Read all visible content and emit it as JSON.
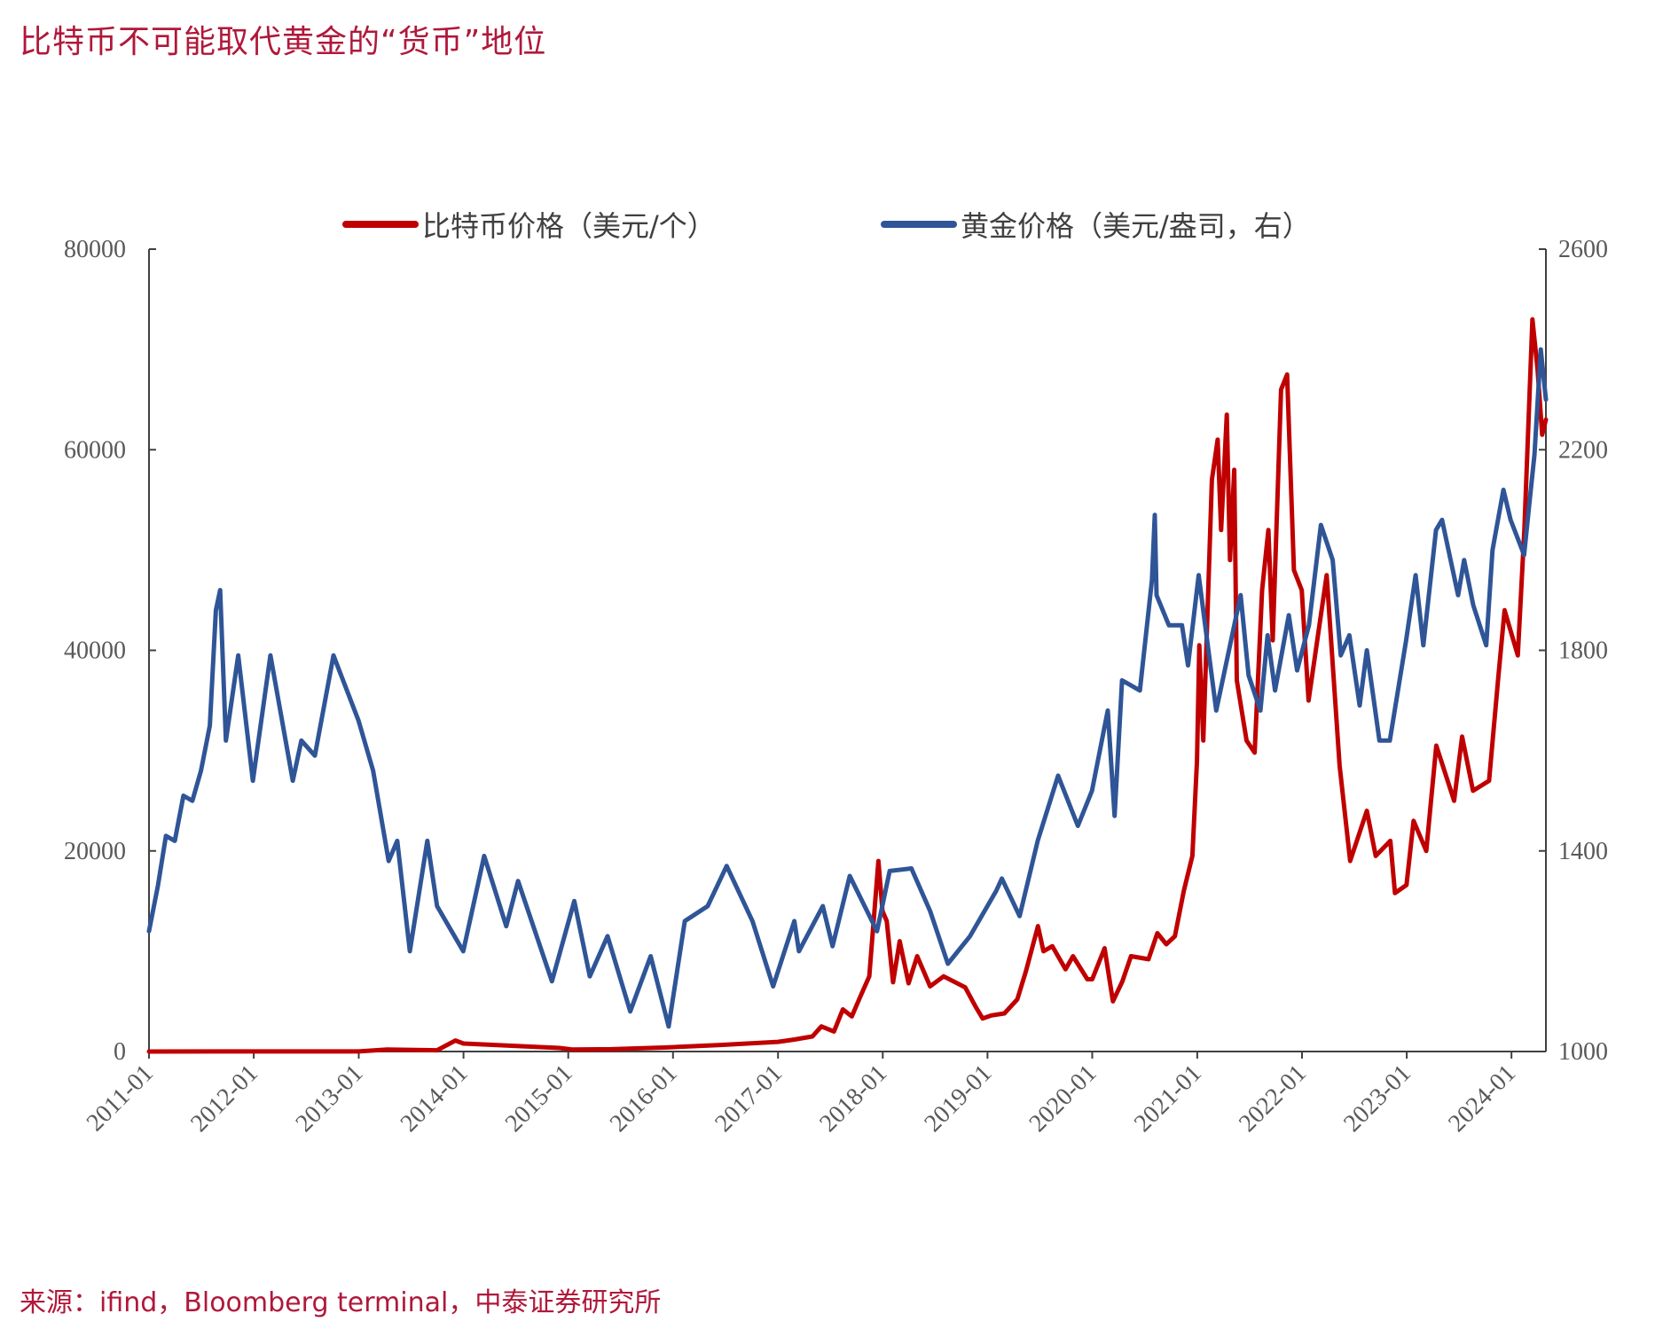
{
  "title": "比特币不可能取代黄金的“货币”地位",
  "source": "来源：ifind，Bloomberg terminal，中泰证券研究所",
  "colors": {
    "btc": "#c00000",
    "gold": "#2f5597",
    "axis": "#404040",
    "title": "#b0183a"
  },
  "chart_data": {
    "type": "line",
    "legend_position": "top",
    "grid": false,
    "x_axis": {
      "ticks": [
        "2011-01",
        "2012-01",
        "2013-01",
        "2014-01",
        "2015-01",
        "2016-01",
        "2017-01",
        "2018-01",
        "2019-01",
        "2020-01",
        "2021-01",
        "2022-01",
        "2023-01",
        "2024-01"
      ],
      "range": [
        "2011-01-01",
        "2024-04-30"
      ]
    },
    "y_left": {
      "min": 0,
      "max": 80000,
      "ticks": [
        0,
        20000,
        40000,
        60000,
        80000
      ]
    },
    "y_right": {
      "min": 1000,
      "max": 2600,
      "ticks": [
        1000,
        1400,
        1800,
        2200,
        2600
      ]
    },
    "series": [
      {
        "name": "比特币价格（美元/个）",
        "axis": "left",
        "color": "#c00000",
        "points": [
          [
            "2011-01-01",
            0
          ],
          [
            "2012-01-01",
            5
          ],
          [
            "2013-01-01",
            13
          ],
          [
            "2013-04-10",
            200
          ],
          [
            "2013-10-01",
            120
          ],
          [
            "2013-12-04",
            1100
          ],
          [
            "2014-01-01",
            800
          ],
          [
            "2014-06-01",
            600
          ],
          [
            "2014-12-01",
            350
          ],
          [
            "2015-01-14",
            200
          ],
          [
            "2015-06-01",
            230
          ],
          [
            "2015-12-01",
            400
          ],
          [
            "2016-06-15",
            650
          ],
          [
            "2017-01-01",
            960
          ],
          [
            "2017-03-01",
            1200
          ],
          [
            "2017-05-01",
            1500
          ],
          [
            "2017-06-01",
            2500
          ],
          [
            "2017-07-15",
            2000
          ],
          [
            "2017-08-15",
            4200
          ],
          [
            "2017-09-15",
            3500
          ],
          [
            "2017-10-15",
            5500
          ],
          [
            "2017-11-15",
            7500
          ],
          [
            "2017-12-17",
            19000
          ],
          [
            "2017-12-31",
            14000
          ],
          [
            "2018-01-15",
            13000
          ],
          [
            "2018-02-06",
            6900
          ],
          [
            "2018-03-01",
            11000
          ],
          [
            "2018-04-01",
            6800
          ],
          [
            "2018-05-01",
            9500
          ],
          [
            "2018-06-15",
            6500
          ],
          [
            "2018-08-01",
            7500
          ],
          [
            "2018-10-15",
            6400
          ],
          [
            "2018-11-20",
            4500
          ],
          [
            "2018-12-15",
            3300
          ],
          [
            "2019-01-15",
            3600
          ],
          [
            "2019-03-01",
            3800
          ],
          [
            "2019-04-15",
            5200
          ],
          [
            "2019-05-15",
            8000
          ],
          [
            "2019-06-26",
            12500
          ],
          [
            "2019-07-15",
            10000
          ],
          [
            "2019-08-15",
            10500
          ],
          [
            "2019-09-30",
            8200
          ],
          [
            "2019-10-26",
            9500
          ],
          [
            "2019-12-15",
            7200
          ],
          [
            "2020-01-01",
            7200
          ],
          [
            "2020-02-13",
            10300
          ],
          [
            "2020-03-13",
            5000
          ],
          [
            "2020-04-15",
            7000
          ],
          [
            "2020-05-15",
            9500
          ],
          [
            "2020-07-15",
            9200
          ],
          [
            "2020-08-15",
            11800
          ],
          [
            "2020-09-15",
            10700
          ],
          [
            "2020-10-15",
            11500
          ],
          [
            "2020-11-15",
            16000
          ],
          [
            "2020-12-15",
            19500
          ],
          [
            "2020-12-31",
            29000
          ],
          [
            "2021-01-08",
            40500
          ],
          [
            "2021-01-22",
            31000
          ],
          [
            "2021-02-21",
            57000
          ],
          [
            "2021-03-13",
            61000
          ],
          [
            "2021-03-25",
            52000
          ],
          [
            "2021-04-14",
            63500
          ],
          [
            "2021-04-25",
            49000
          ],
          [
            "2021-05-10",
            58000
          ],
          [
            "2021-05-19",
            37000
          ],
          [
            "2021-06-22",
            31000
          ],
          [
            "2021-07-20",
            29800
          ],
          [
            "2021-08-15",
            46000
          ],
          [
            "2021-09-06",
            52000
          ],
          [
            "2021-09-21",
            41000
          ],
          [
            "2021-10-20",
            66000
          ],
          [
            "2021-11-10",
            67500
          ],
          [
            "2021-12-04",
            48000
          ],
          [
            "2021-12-31",
            46000
          ],
          [
            "2022-01-24",
            35000
          ],
          [
            "2022-03-28",
            47500
          ],
          [
            "2022-05-12",
            28500
          ],
          [
            "2022-06-18",
            19000
          ],
          [
            "2022-08-15",
            24000
          ],
          [
            "2022-09-15",
            19500
          ],
          [
            "2022-11-05",
            21000
          ],
          [
            "2022-11-21",
            15800
          ],
          [
            "2022-12-31",
            16600
          ],
          [
            "2023-01-25",
            23000
          ],
          [
            "2023-03-10",
            20000
          ],
          [
            "2023-04-14",
            30500
          ],
          [
            "2023-06-15",
            25000
          ],
          [
            "2023-07-13",
            31400
          ],
          [
            "2023-08-20",
            26000
          ],
          [
            "2023-10-15",
            27000
          ],
          [
            "2023-11-15",
            37000
          ],
          [
            "2023-12-08",
            44000
          ],
          [
            "2024-01-23",
            39500
          ],
          [
            "2024-02-15",
            52000
          ],
          [
            "2024-03-14",
            73000
          ],
          [
            "2024-04-01",
            68000
          ],
          [
            "2024-04-17",
            61500
          ],
          [
            "2024-04-30",
            63000
          ]
        ]
      },
      {
        "name": "黄金价格（美元/盎司，右）",
        "axis": "right",
        "color": "#2f5597",
        "points": [
          [
            "2011-01-01",
            1240
          ],
          [
            "2011-02-01",
            1330
          ],
          [
            "2011-03-01",
            1430
          ],
          [
            "2011-04-01",
            1420
          ],
          [
            "2011-05-01",
            1510
          ],
          [
            "2011-06-01",
            1500
          ],
          [
            "2011-07-01",
            1560
          ],
          [
            "2011-08-01",
            1650
          ],
          [
            "2011-08-22",
            1880
          ],
          [
            "2011-09-06",
            1920
          ],
          [
            "2011-09-26",
            1620
          ],
          [
            "2011-11-08",
            1790
          ],
          [
            "2011-12-29",
            1540
          ],
          [
            "2012-02-28",
            1790
          ],
          [
            "2012-05-16",
            1540
          ],
          [
            "2012-06-15",
            1620
          ],
          [
            "2012-08-01",
            1590
          ],
          [
            "2012-10-05",
            1790
          ],
          [
            "2012-12-31",
            1660
          ],
          [
            "2013-02-20",
            1560
          ],
          [
            "2013-04-15",
            1380
          ],
          [
            "2013-05-15",
            1420
          ],
          [
            "2013-06-28",
            1200
          ],
          [
            "2013-08-28",
            1420
          ],
          [
            "2013-10-01",
            1290
          ],
          [
            "2013-12-31",
            1200
          ],
          [
            "2014-03-14",
            1390
          ],
          [
            "2014-05-30",
            1250
          ],
          [
            "2014-07-10",
            1340
          ],
          [
            "2014-11-05",
            1140
          ],
          [
            "2015-01-22",
            1300
          ],
          [
            "2015-03-17",
            1150
          ],
          [
            "2015-05-18",
            1230
          ],
          [
            "2015-08-05",
            1080
          ],
          [
            "2015-10-15",
            1190
          ],
          [
            "2015-12-17",
            1050
          ],
          [
            "2016-02-11",
            1260
          ],
          [
            "2016-05-01",
            1290
          ],
          [
            "2016-07-06",
            1370
          ],
          [
            "2016-10-04",
            1260
          ],
          [
            "2016-12-15",
            1130
          ],
          [
            "2017-02-27",
            1260
          ],
          [
            "2017-03-15",
            1200
          ],
          [
            "2017-06-06",
            1290
          ],
          [
            "2017-07-10",
            1210
          ],
          [
            "2017-09-08",
            1350
          ],
          [
            "2017-12-12",
            1240
          ],
          [
            "2018-01-25",
            1360
          ],
          [
            "2018-04-11",
            1365
          ],
          [
            "2018-06-15",
            1280
          ],
          [
            "2018-08-16",
            1175
          ],
          [
            "2018-11-01",
            1230
          ],
          [
            "2019-01-31",
            1320
          ],
          [
            "2019-02-20",
            1345
          ],
          [
            "2019-04-23",
            1270
          ],
          [
            "2019-06-25",
            1420
          ],
          [
            "2019-09-04",
            1550
          ],
          [
            "2019-11-12",
            1450
          ],
          [
            "2019-12-31",
            1520
          ],
          [
            "2020-02-24",
            1680
          ],
          [
            "2020-03-19",
            1470
          ],
          [
            "2020-04-14",
            1740
          ],
          [
            "2020-06-15",
            1720
          ],
          [
            "2020-07-27",
            1940
          ],
          [
            "2020-08-06",
            2070
          ],
          [
            "2020-08-12",
            1910
          ],
          [
            "2020-09-24",
            1850
          ],
          [
            "2020-11-09",
            1850
          ],
          [
            "2020-11-30",
            1770
          ],
          [
            "2021-01-06",
            1950
          ],
          [
            "2021-03-08",
            1680
          ],
          [
            "2021-06-01",
            1910
          ],
          [
            "2021-06-29",
            1750
          ],
          [
            "2021-08-09",
            1680
          ],
          [
            "2021-09-03",
            1830
          ],
          [
            "2021-09-29",
            1720
          ],
          [
            "2021-11-16",
            1870
          ],
          [
            "2021-12-15",
            1760
          ],
          [
            "2022-01-25",
            1850
          ],
          [
            "2022-03-08",
            2050
          ],
          [
            "2022-04-18",
            1980
          ],
          [
            "2022-05-16",
            1790
          ],
          [
            "2022-06-15",
            1830
          ],
          [
            "2022-07-21",
            1690
          ],
          [
            "2022-08-15",
            1800
          ],
          [
            "2022-09-28",
            1620
          ],
          [
            "2022-11-03",
            1620
          ],
          [
            "2022-12-30",
            1820
          ],
          [
            "2023-02-01",
            1950
          ],
          [
            "2023-02-28",
            1810
          ],
          [
            "2023-04-13",
            2040
          ],
          [
            "2023-05-04",
            2060
          ],
          [
            "2023-06-29",
            1910
          ],
          [
            "2023-07-20",
            1980
          ],
          [
            "2023-08-21",
            1890
          ],
          [
            "2023-10-05",
            1810
          ],
          [
            "2023-10-27",
            2000
          ],
          [
            "2023-12-04",
            2120
          ],
          [
            "2023-12-29",
            2060
          ],
          [
            "2024-02-14",
            1990
          ],
          [
            "2024-03-01",
            2080
          ],
          [
            "2024-03-21",
            2190
          ],
          [
            "2024-04-12",
            2400
          ],
          [
            "2024-04-30",
            2300
          ]
        ]
      }
    ]
  }
}
